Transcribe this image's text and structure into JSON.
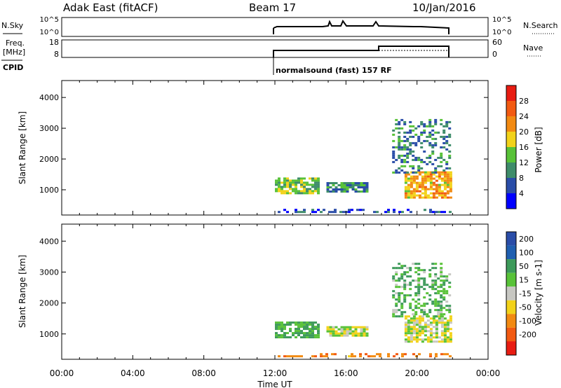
{
  "header": {
    "station_title": "Adak East (fitACF)",
    "beam_label": "Beam 17",
    "date_label": "10/Jan/2016"
  },
  "top_panels": {
    "nsky_label": "N.Sky",
    "nsky_ticks": [
      "10^5",
      "10^0"
    ],
    "nsearch_label": "N.Search",
    "nsearch_ticks": [
      "10^5",
      "10^0"
    ],
    "freq_label_line1": "Freq.",
    "freq_label_line2": "[MHz]",
    "freq_ticks": [
      "18",
      "8"
    ],
    "nave_label": "Nave",
    "nave_ticks": [
      "60",
      "0"
    ],
    "cpid_label": "CPID",
    "cpid_value": "normalsound (fast) 157 RF"
  },
  "colors": {
    "dark_blue": "#2a4da8",
    "blue": "#1f5fb0",
    "green": "#3d9a5a",
    "light_green": "#58c238",
    "yellow": "#f2d21a",
    "orange": "#f28a12",
    "red": "#e81c12",
    "grey": "#c7c7c2"
  },
  "chart_data": [
    {
      "type": "heatmap",
      "title": "",
      "ylabel": "Slant Range [km]",
      "xlabel": "",
      "ylim": [
        180,
        4550
      ],
      "y_ticks": [
        "1000",
        "2000",
        "3000",
        "4000"
      ],
      "colorbar": {
        "label": "Power [dB]",
        "ticks": [
          "4",
          "8",
          "12",
          "16",
          "20",
          "24",
          "28"
        ],
        "colors": [
          "#0000ff",
          "#2a4da8",
          "#3e8c6a",
          "#58c238",
          "#f2d21a",
          "#f28a12",
          "#f25a12",
          "#e81c12"
        ]
      },
      "echo_regions": [
        {
          "time_start": 12.0,
          "time_end": 14.6,
          "range_min": 800,
          "range_max": 1400,
          "value": 14
        },
        {
          "time_start": 14.9,
          "time_end": 17.4,
          "range_min": 900,
          "range_max": 1250,
          "value": 10
        },
        {
          "time_start": 19.3,
          "time_end": 22.0,
          "range_min": 700,
          "range_max": 1600,
          "value": 20
        },
        {
          "time_start": 18.6,
          "time_end": 22.0,
          "range_min": 1500,
          "range_max": 3300,
          "value": 9
        },
        {
          "time_start": 12.0,
          "time_end": 22.0,
          "range_min": 180,
          "range_max": 380,
          "value": 6
        }
      ]
    },
    {
      "type": "heatmap",
      "title": "",
      "ylabel": "Slant Range [km]",
      "xlabel": "Time UT",
      "xlim": [
        0,
        24
      ],
      "ylim": [
        180,
        4550
      ],
      "x_ticks": [
        "00:00",
        "04:00",
        "08:00",
        "12:00",
        "16:00",
        "20:00",
        "00:00"
      ],
      "y_ticks": [
        "1000",
        "2000",
        "3000",
        "4000"
      ],
      "colorbar": {
        "label": "Velocity [m s-1]",
        "ticks": [
          "200",
          "100",
          "50",
          "15",
          "-15",
          "-50",
          "-100",
          "-200"
        ],
        "colors": [
          "#2a4da8",
          "#1f5fb0",
          "#3d9a5a",
          "#58c238",
          "#c7c7c2",
          "#f2d21a",
          "#f28a12",
          "#f25a12",
          "#e81c12"
        ]
      },
      "echo_regions": [
        {
          "time_start": 12.0,
          "time_end": 14.6,
          "range_min": 800,
          "range_max": 1400,
          "value": 40
        },
        {
          "time_start": 14.9,
          "time_end": 17.4,
          "range_min": 900,
          "range_max": 1250,
          "value": 0
        },
        {
          "time_start": 19.3,
          "time_end": 22.0,
          "range_min": 700,
          "range_max": 1600,
          "value": 0
        },
        {
          "time_start": 18.6,
          "time_end": 22.0,
          "range_min": 1500,
          "range_max": 3300,
          "value": 30
        },
        {
          "time_start": 12.0,
          "time_end": 22.0,
          "range_min": 180,
          "range_max": 380,
          "value": -60
        }
      ]
    }
  ]
}
